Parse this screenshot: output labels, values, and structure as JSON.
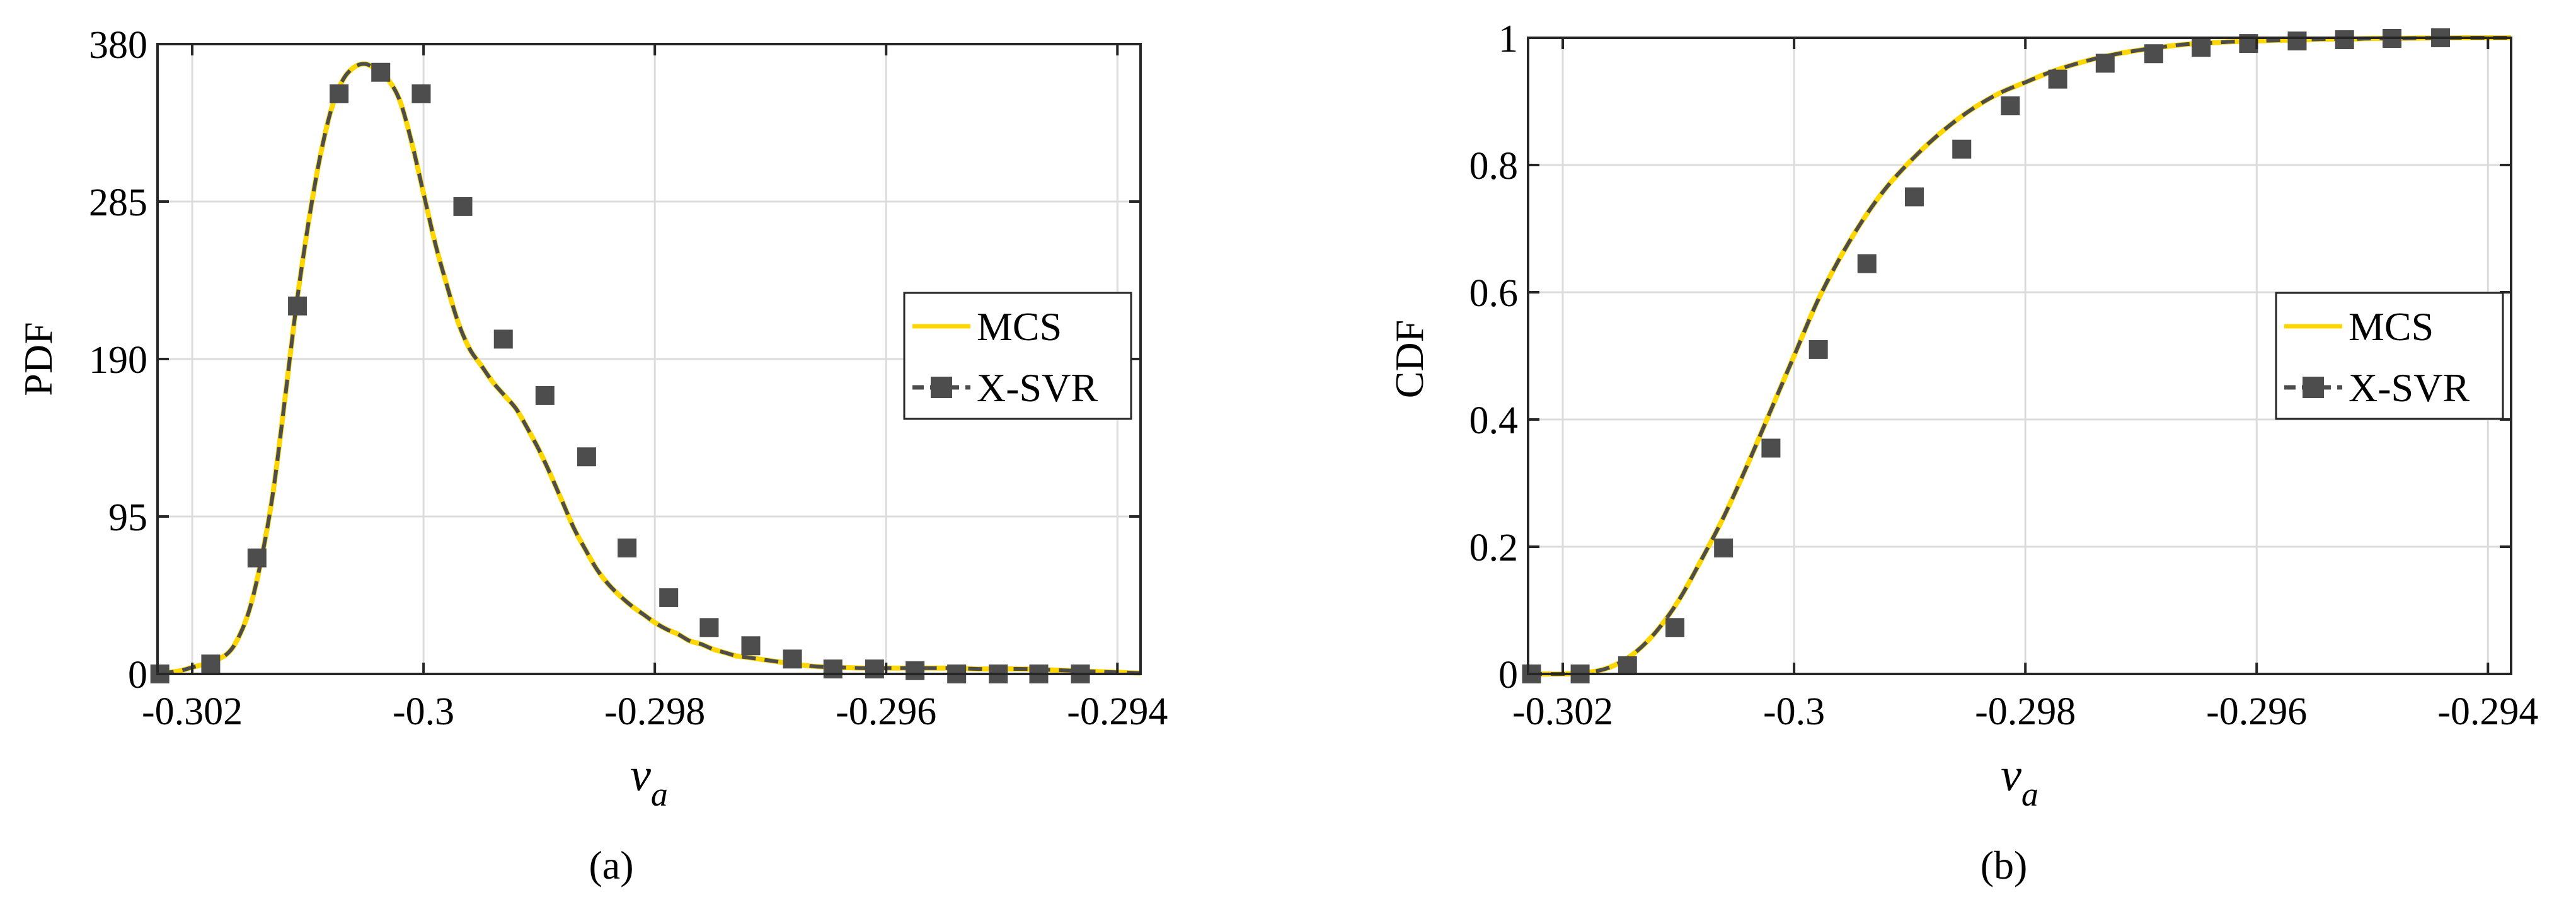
{
  "figure": {
    "panel_labels": [
      "(a)",
      "(b)"
    ],
    "colors": {
      "mcs": "#FFD700",
      "xsvr": "#4D4D4D",
      "marker": "#4D4D4D",
      "grid": "#DCDCDC",
      "axes": "#262626"
    }
  },
  "chart_data": [
    {
      "type": "line",
      "panel": "(a)",
      "title": "",
      "xlabel": "ν",
      "xlabel_subscript": "a",
      "ylabel": "PDF",
      "xlim": [
        -0.3023,
        -0.2938
      ],
      "ylim": [
        0,
        380
      ],
      "x_ticks": [
        -0.302,
        -0.3,
        -0.298,
        -0.296,
        -0.294
      ],
      "x_tick_labels": [
        "-0.302",
        "-0.3",
        "-0.298",
        "-0.296",
        "-0.294"
      ],
      "y_ticks": [
        0,
        95,
        190,
        285,
        380
      ],
      "y_tick_labels": [
        "0",
        "95",
        "190",
        "285",
        "380"
      ],
      "grid": true,
      "legend": {
        "location": "right",
        "entries": [
          "MCS",
          "X-SVR"
        ]
      },
      "series": [
        {
          "name": "MCS",
          "style": "solid",
          "x": [
            -0.30228,
            -0.3022,
            -0.3021,
            -0.302,
            -0.30185,
            -0.3017,
            -0.3016,
            -0.3015,
            -0.3014,
            -0.3013,
            -0.3012,
            -0.3011,
            -0.301,
            -0.3009,
            -0.3008,
            -0.3007,
            -0.3006,
            -0.3005,
            -0.3004,
            -0.3003,
            -0.3002,
            -0.3001,
            -0.3,
            -0.2999,
            -0.2998,
            -0.2997,
            -0.2996,
            -0.2995,
            -0.2994,
            -0.2993,
            -0.2992,
            -0.2991,
            -0.299,
            -0.2989,
            -0.2988,
            -0.2987,
            -0.2986,
            -0.2985,
            -0.2984,
            -0.2983,
            -0.2982,
            -0.2981,
            -0.298,
            -0.2979,
            -0.2978,
            -0.2977,
            -0.2976,
            -0.2975,
            -0.2974,
            -0.2973,
            -0.2972,
            -0.2971,
            -0.297,
            -0.2969,
            -0.2968,
            -0.2966,
            -0.2964,
            -0.2962,
            -0.296,
            -0.2958,
            -0.2956,
            -0.2954,
            -0.2952,
            -0.295,
            -0.2948,
            -0.2946,
            -0.2944,
            -0.2942,
            -0.294,
            -0.2938
          ],
          "values": [
            0.5,
            1,
            2,
            4,
            7,
            12,
            22,
            40,
            70,
            110,
            165,
            222,
            270,
            310,
            340,
            358,
            366,
            368,
            364,
            358,
            345,
            320,
            290,
            260,
            235,
            212,
            196,
            186,
            176,
            168,
            160,
            148,
            135,
            120,
            104,
            88,
            75,
            63,
            54,
            47,
            41,
            36,
            31,
            27,
            24,
            20,
            18,
            15,
            13,
            11,
            10,
            9,
            8,
            7,
            6,
            4.5,
            4,
            3.5,
            3.5,
            3.5,
            3.5,
            3.5,
            3,
            3,
            3,
            2.5,
            2,
            1.5,
            1,
            0.5
          ]
        },
        {
          "name": "X-SVR",
          "style": "dashed",
          "marker": "square",
          "x": [
            -0.30228,
            -0.30184,
            -0.30144,
            -0.30109,
            -0.30073,
            -0.30037,
            -0.30002,
            -0.29966,
            -0.29931,
            -0.29895,
            -0.29859,
            -0.29824,
            -0.29788,
            -0.29753,
            -0.29717,
            -0.29681,
            -0.29646,
            -0.2961,
            -0.29575,
            -0.29539,
            -0.29503,
            -0.29468,
            -0.29432
          ],
          "values": [
            0,
            6,
            70,
            222,
            350,
            363,
            350,
            282,
            202,
            168,
            131,
            76,
            46,
            28,
            17,
            9,
            3,
            3,
            2,
            0,
            0,
            0,
            0
          ]
        }
      ]
    },
    {
      "type": "line",
      "panel": "(b)",
      "title": "",
      "xlabel": "ν",
      "xlabel_subscript": "a",
      "ylabel": "CDF",
      "xlim": [
        -0.3023,
        -0.2938
      ],
      "ylim": [
        0,
        1
      ],
      "x_ticks": [
        -0.302,
        -0.3,
        -0.298,
        -0.296,
        -0.294
      ],
      "x_tick_labels": [
        "-0.302",
        "-0.3",
        "-0.298",
        "-0.296",
        "-0.294"
      ],
      "y_ticks": [
        0,
        0.2,
        0.4,
        0.6,
        0.8,
        1
      ],
      "y_tick_labels": [
        "0",
        "0.2",
        "0.4",
        "0.6",
        "0.8",
        "1"
      ],
      "grid": true,
      "legend": {
        "location": "right",
        "entries": [
          "MCS",
          "X-SVR"
        ]
      },
      "series": [
        {
          "name": "MCS",
          "style": "solid",
          "x": [
            -0.3023,
            -0.302,
            -0.3018,
            -0.3016,
            -0.3014,
            -0.3012,
            -0.301,
            -0.3008,
            -0.3006,
            -0.3004,
            -0.3002,
            -0.3,
            -0.2998,
            -0.2996,
            -0.2994,
            -0.2992,
            -0.299,
            -0.2988,
            -0.2986,
            -0.2984,
            -0.2982,
            -0.298,
            -0.2978,
            -0.2976,
            -0.2974,
            -0.2972,
            -0.297,
            -0.2968,
            -0.2966,
            -0.2964,
            -0.2962,
            -0.296,
            -0.2958,
            -0.2956,
            -0.2954,
            -0.2952,
            -0.295,
            -0.2948,
            -0.2946,
            -0.2944,
            -0.2942,
            -0.294,
            -0.2938
          ],
          "values": [
            0,
            0,
            0.002,
            0.01,
            0.03,
            0.065,
            0.115,
            0.18,
            0.25,
            0.33,
            0.415,
            0.5,
            0.585,
            0.655,
            0.715,
            0.765,
            0.805,
            0.84,
            0.87,
            0.895,
            0.915,
            0.93,
            0.945,
            0.957,
            0.967,
            0.975,
            0.981,
            0.986,
            0.99,
            0.992,
            0.994,
            0.995,
            0.996,
            0.997,
            0.998,
            0.998,
            0.999,
            0.999,
            0.9995,
            0.9998,
            1,
            1,
            1
          ]
        },
        {
          "name": "X-SVR",
          "style": "dashed",
          "marker": "square",
          "x": [
            -0.30227,
            -0.30185,
            -0.30144,
            -0.30103,
            -0.30061,
            -0.3002,
            -0.29979,
            -0.29937,
            -0.29896,
            -0.29855,
            -0.29813,
            -0.29772,
            -0.29731,
            -0.29689,
            -0.29648,
            -0.29607,
            -0.29565,
            -0.29524,
            -0.29483,
            -0.29441
          ],
          "values": [
            0,
            0,
            0.013,
            0.073,
            0.198,
            0.355,
            0.51,
            0.645,
            0.75,
            0.825,
            0.893,
            0.935,
            0.96,
            0.975,
            0.985,
            0.991,
            0.995,
            0.997,
            0.999,
            1.0
          ]
        }
      ]
    }
  ]
}
